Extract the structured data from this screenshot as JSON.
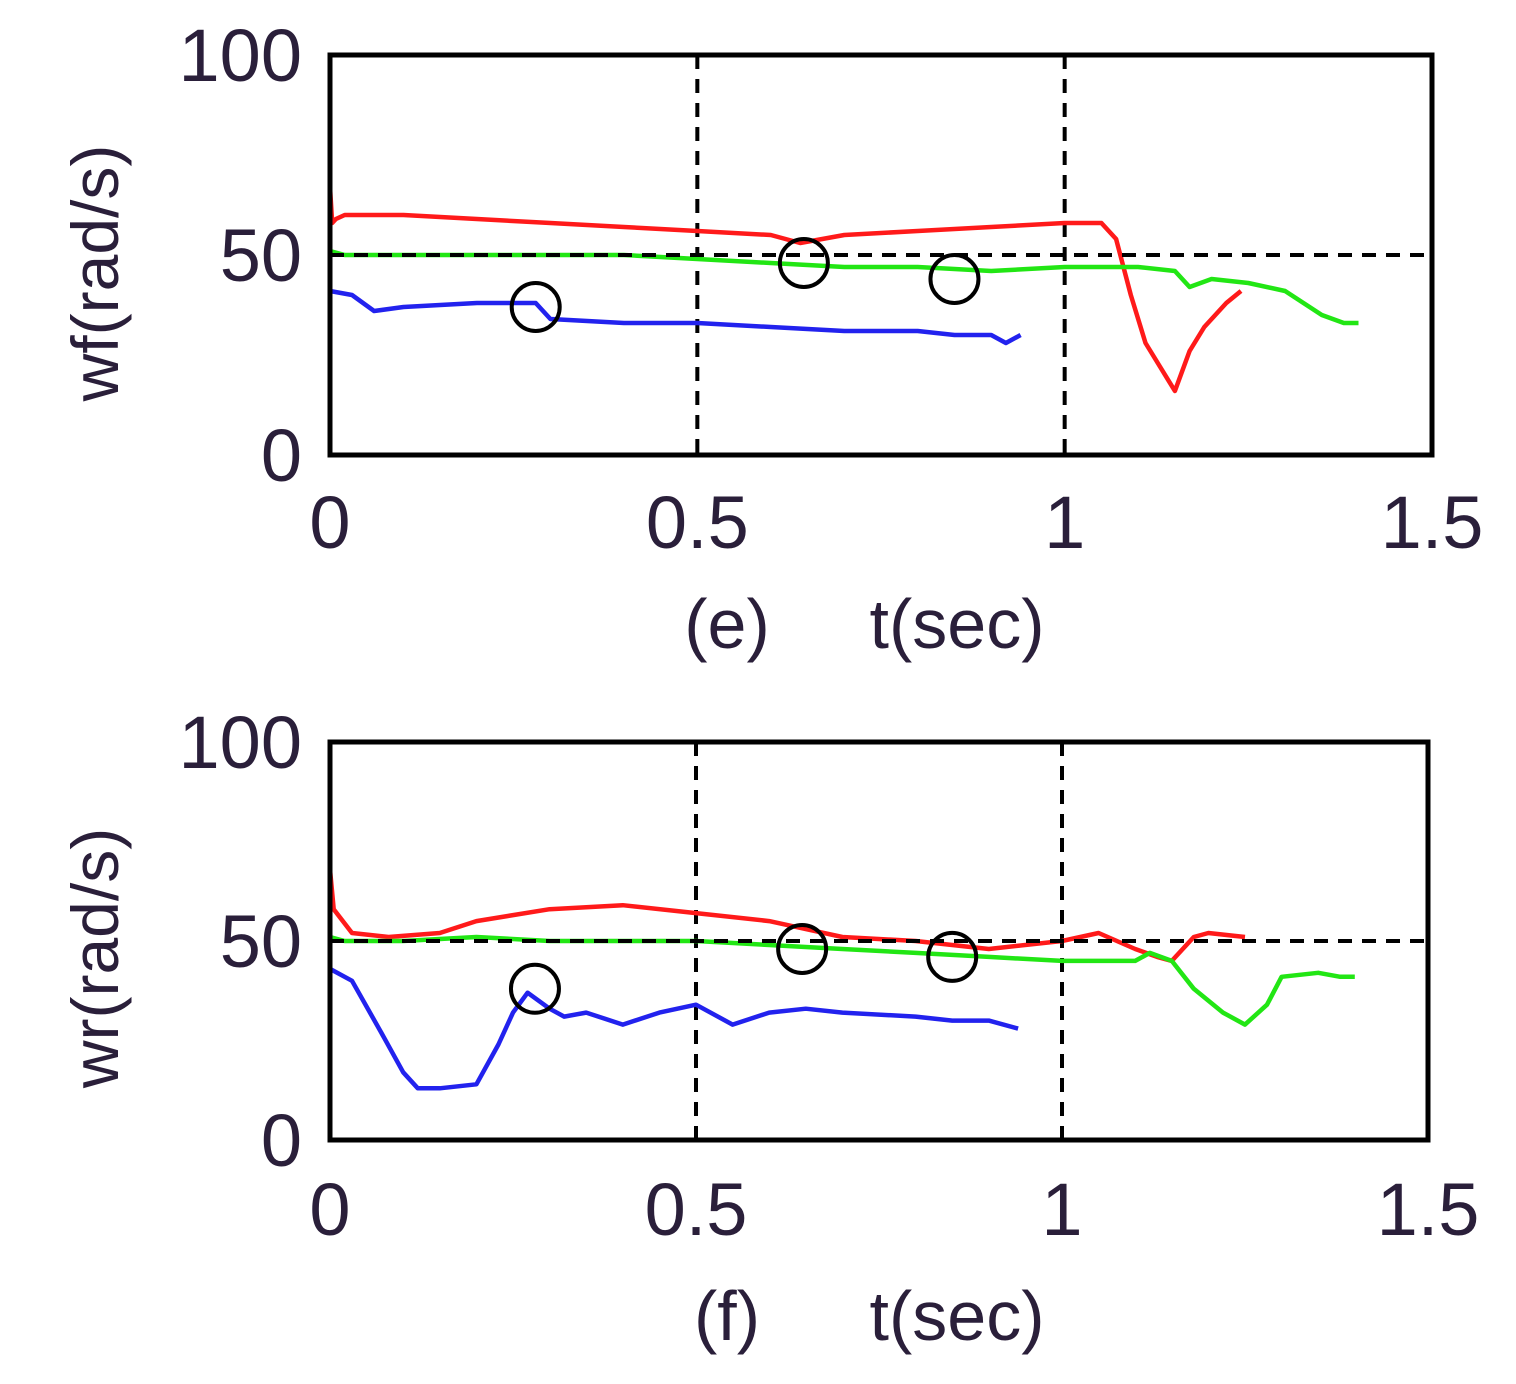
{
  "chart_data": [
    {
      "type": "line",
      "panel": "(e)",
      "xlabel": "t(sec)",
      "ylabel": "wf(rad/s)",
      "xlim": [
        0,
        1.5
      ],
      "ylim": [
        0,
        100
      ],
      "xticks": [
        "0",
        "0.5",
        "1",
        "1.5"
      ],
      "yticks": [
        "0",
        "50",
        "100"
      ],
      "grid": {
        "vertical": [
          0.5,
          1.0
        ],
        "horizontal": [
          50
        ]
      },
      "series": [
        {
          "name": "red",
          "color": "#ff1a1a",
          "x": [
            0,
            0.003,
            0.008,
            0.02,
            0.1,
            0.2,
            0.3,
            0.4,
            0.5,
            0.6,
            0.64,
            0.7,
            0.8,
            0.9,
            1.0,
            1.05,
            1.07,
            1.09,
            1.11,
            1.13,
            1.15,
            1.17,
            1.19,
            1.22,
            1.24
          ],
          "y": [
            67,
            58,
            59,
            60,
            60,
            59,
            58,
            57,
            56,
            55,
            53,
            55,
            56,
            57,
            58,
            58,
            54,
            40,
            28,
            22,
            16,
            26,
            32,
            38,
            41
          ]
        },
        {
          "name": "green",
          "color": "#22e614",
          "x": [
            0,
            0.02,
            0.1,
            0.2,
            0.3,
            0.4,
            0.5,
            0.6,
            0.7,
            0.8,
            0.9,
            1.0,
            1.05,
            1.1,
            1.15,
            1.17,
            1.2,
            1.25,
            1.3,
            1.35,
            1.38,
            1.4
          ],
          "y": [
            51,
            50,
            50,
            50,
            50,
            50,
            49,
            48,
            47,
            47,
            46,
            47,
            47,
            47,
            46,
            42,
            44,
            43,
            41,
            35,
            33,
            33
          ]
        },
        {
          "name": "blue",
          "color": "#2222ee",
          "x": [
            0,
            0.03,
            0.06,
            0.1,
            0.2,
            0.28,
            0.3,
            0.4,
            0.5,
            0.6,
            0.7,
            0.8,
            0.85,
            0.9,
            0.92,
            0.94
          ],
          "y": [
            41,
            40,
            36,
            37,
            38,
            38,
            34,
            33,
            33,
            32,
            31,
            31,
            30,
            30,
            28,
            30
          ]
        },
        {
          "name": "reference",
          "color": "#000000",
          "dashed": true,
          "x": [
            0,
            1.5
          ],
          "y": [
            50,
            50
          ]
        }
      ],
      "markers": [
        {
          "x": 0.28,
          "y": 37
        },
        {
          "x": 0.645,
          "y": 48
        },
        {
          "x": 0.85,
          "y": 44
        }
      ]
    },
    {
      "type": "line",
      "panel": "(f)",
      "xlabel": "t(sec)",
      "ylabel": "wr(rad/s)",
      "xlim": [
        0,
        1.5
      ],
      "ylim": [
        0,
        100
      ],
      "xticks": [
        "0",
        "0.5",
        "1",
        "1.5"
      ],
      "yticks": [
        "0",
        "50",
        "100"
      ],
      "grid": {
        "vertical": [
          0.5,
          1.0
        ],
        "horizontal": [
          50
        ]
      },
      "series": [
        {
          "name": "red",
          "color": "#ff1a1a",
          "x": [
            0,
            0.005,
            0.03,
            0.08,
            0.15,
            0.2,
            0.3,
            0.4,
            0.5,
            0.6,
            0.65,
            0.7,
            0.8,
            0.9,
            1.0,
            1.05,
            1.1,
            1.13,
            1.15,
            1.18,
            1.2,
            1.25
          ],
          "y": [
            68,
            58,
            52,
            51,
            52,
            55,
            58,
            59,
            57,
            55,
            53,
            51,
            50,
            48,
            50,
            52,
            48,
            46,
            45,
            51,
            52,
            51
          ]
        },
        {
          "name": "green",
          "color": "#22e614",
          "x": [
            0,
            0.02,
            0.1,
            0.2,
            0.3,
            0.4,
            0.5,
            0.6,
            0.7,
            0.8,
            0.9,
            1.0,
            1.05,
            1.1,
            1.12,
            1.15,
            1.18,
            1.22,
            1.25,
            1.28,
            1.3,
            1.35,
            1.38,
            1.4
          ],
          "y": [
            51,
            50,
            50,
            51,
            50,
            50,
            50,
            49,
            48,
            47,
            46,
            45,
            45,
            45,
            47,
            45,
            38,
            32,
            29,
            34,
            41,
            42,
            41,
            41
          ]
        },
        {
          "name": "blue",
          "color": "#2222ee",
          "x": [
            0,
            0.03,
            0.07,
            0.1,
            0.12,
            0.15,
            0.2,
            0.23,
            0.25,
            0.27,
            0.3,
            0.32,
            0.35,
            0.4,
            0.45,
            0.5,
            0.55,
            0.6,
            0.65,
            0.7,
            0.8,
            0.85,
            0.9,
            0.94
          ],
          "y": [
            43,
            40,
            27,
            17,
            13,
            13,
            14,
            24,
            32,
            37,
            33,
            31,
            32,
            29,
            32,
            34,
            29,
            32,
            33,
            32,
            31,
            30,
            30,
            28
          ]
        },
        {
          "name": "reference",
          "color": "#000000",
          "dashed": true,
          "x": [
            0,
            1.5
          ],
          "y": [
            50,
            50
          ]
        }
      ],
      "markers": [
        {
          "x": 0.28,
          "y": 38
        },
        {
          "x": 0.645,
          "y": 48
        },
        {
          "x": 0.85,
          "y": 46
        }
      ]
    }
  ]
}
